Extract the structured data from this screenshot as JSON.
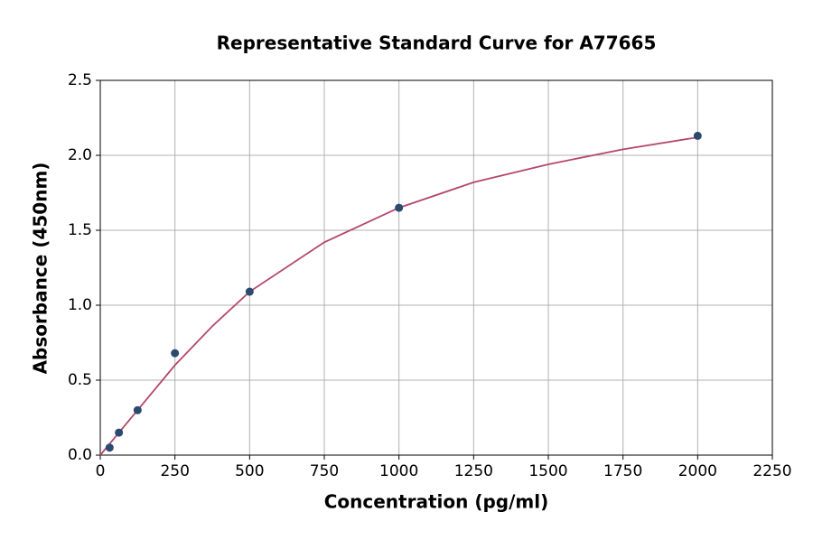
{
  "chart_data": {
    "type": "scatter",
    "title": "Representative Standard Curve for A77665",
    "x_label": "Concentration (pg/ml)",
    "y_label": "Absorbance (450nm)",
    "x": [
      31.25,
      62.5,
      125,
      250,
      500,
      1000,
      2000
    ],
    "values": [
      0.05,
      0.15,
      0.3,
      0.68,
      1.09,
      1.65,
      2.13
    ],
    "color": "#2b4a6f",
    "fit": {
      "x": [
        0,
        62.5,
        125,
        250,
        375,
        500,
        750,
        1000,
        1250,
        1500,
        1750,
        2000
      ],
      "values": [
        0.0,
        0.15,
        0.3,
        0.6,
        0.86,
        1.09,
        1.42,
        1.65,
        1.82,
        1.94,
        2.04,
        2.12
      ],
      "color": "#b5476a"
    },
    "xlim": [
      0,
      2250
    ],
    "xticks": [
      0,
      250,
      500,
      750,
      1000,
      1250,
      1500,
      1750,
      2000,
      2250
    ],
    "ylim": [
      0,
      2.5
    ],
    "yticks": [
      {
        "value": 0,
        "label": "0.0"
      },
      0.5,
      {
        "value": 1,
        "label": "1.0"
      },
      1.5,
      {
        "value": 2,
        "label": "2.0"
      },
      2.5
    ],
    "grid": true
  }
}
